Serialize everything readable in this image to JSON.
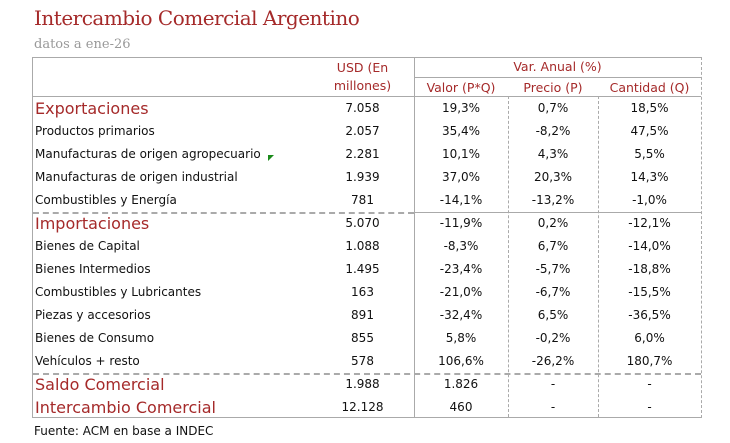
{
  "title": "Intercambio Comercial Argentino",
  "subtitle": "datos a ene-26",
  "headers": {
    "usd_line1": "USD  (En",
    "usd_line2": "millones)",
    "var_anual": "Var. Anual (%)",
    "valor": "Valor (P*Q)",
    "precio": "Precio (P)",
    "cantidad": "Cantidad (Q)"
  },
  "rows": [
    {
      "label": "Exportaciones",
      "usd": "7.058",
      "valor": "19,3%",
      "precio": "0,7%",
      "cantidad": "18,5%",
      "big": true
    },
    {
      "label": "Productos primarios",
      "usd": "2.057",
      "valor": "35,4%",
      "precio": "-8,2%",
      "cantidad": "47,5%"
    },
    {
      "label": "Manufacturas de origen agropecuario",
      "usd": "2.281",
      "valor": "10,1%",
      "precio": "4,3%",
      "cantidad": "5,5%"
    },
    {
      "label": "Manufacturas de origen industrial",
      "usd": "1.939",
      "valor": "37,0%",
      "precio": "20,3%",
      "cantidad": "14,3%"
    },
    {
      "label": "Combustibles y Energía",
      "usd": "781",
      "valor": "-14,1%",
      "precio": "-13,2%",
      "cantidad": "-1,0%"
    },
    {
      "label": "Importaciones",
      "usd": "5.070",
      "valor": "-11,9%",
      "precio": "0,2%",
      "cantidad": "-12,1%",
      "big": true
    },
    {
      "label": "Bienes de Capital",
      "usd": "1.088",
      "valor": "-8,3%",
      "precio": "6,7%",
      "cantidad": "-14,0%"
    },
    {
      "label": "Bienes Intermedios",
      "usd": "1.495",
      "valor": "-23,4%",
      "precio": "-5,7%",
      "cantidad": "-18,8%"
    },
    {
      "label": "Combustibles y Lubricantes",
      "usd": "163",
      "valor": "-21,0%",
      "precio": "-6,7%",
      "cantidad": "-15,5%"
    },
    {
      "label": "Piezas y accesorios",
      "usd": "891",
      "valor": "-32,4%",
      "precio": "6,5%",
      "cantidad": "-36,5%"
    },
    {
      "label": "Bienes de Consumo",
      "usd": "855",
      "valor": "5,8%",
      "precio": "-0,2%",
      "cantidad": "6,0%"
    },
    {
      "label": "Vehículos + resto",
      "usd": "578",
      "valor": "106,6%",
      "precio": "-26,2%",
      "cantidad": "180,7%"
    },
    {
      "label": "Saldo Comercial",
      "usd": "1.988",
      "valor": "1.826",
      "precio": "-",
      "cantidad": "-",
      "big": true
    },
    {
      "label": "Intercambio Comercial",
      "usd": "12.128",
      "valor": "460",
      "precio": "-",
      "cantidad": "-",
      "big": true
    }
  ],
  "footer": "Fuente: ACM en base a INDEC"
}
